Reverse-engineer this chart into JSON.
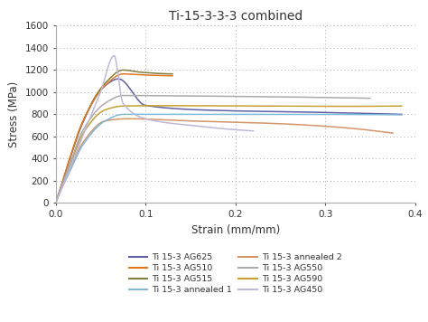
{
  "title": "Ti-15-3-3-3 combined",
  "xlabel": "Strain (mm/mm)",
  "ylabel": "Stress (MPa)",
  "xlim": [
    0,
    0.4
  ],
  "ylim": [
    0,
    1600
  ],
  "yticks": [
    0,
    200,
    400,
    600,
    800,
    1000,
    1200,
    1400,
    1600
  ],
  "xticks": [
    0,
    0.1,
    0.2,
    0.3,
    0.4
  ],
  "background_color": "#ffffff",
  "series": [
    {
      "label": "Ti 15-3 AG625",
      "color": "#6060a8",
      "knots_strain": [
        0,
        0.005,
        0.015,
        0.03,
        0.05,
        0.07,
        0.1,
        0.18,
        0.28,
        0.385
      ],
      "knots_stress": [
        0,
        120,
        380,
        720,
        1020,
        1120,
        880,
        835,
        820,
        800
      ]
    },
    {
      "label": "Ti 15-3 AG515",
      "color": "#808040",
      "knots_strain": [
        0,
        0.005,
        0.015,
        0.03,
        0.055,
        0.075,
        0.095,
        0.13
      ],
      "knots_stress": [
        0,
        120,
        380,
        730,
        1080,
        1200,
        1180,
        1165
      ]
    },
    {
      "label": "Ti 15-3 annealed 2",
      "color": "#d4956a",
      "knots_strain": [
        0,
        0.005,
        0.015,
        0.03,
        0.055,
        0.08,
        0.15,
        0.25,
        0.32,
        0.375
      ],
      "knots_stress": [
        0,
        100,
        280,
        540,
        740,
        760,
        740,
        715,
        680,
        630
      ]
    },
    {
      "label": "Ti 15-3 AG590",
      "color": "#c8a030",
      "knots_strain": [
        0,
        0.005,
        0.015,
        0.03,
        0.055,
        0.075,
        0.12,
        0.22,
        0.32,
        0.385
      ],
      "knots_stress": [
        0,
        110,
        310,
        620,
        840,
        875,
        878,
        875,
        872,
        875
      ]
    },
    {
      "label": "Ti 15-3 AG510",
      "color": "#e07820",
      "knots_strain": [
        0,
        0.005,
        0.015,
        0.03,
        0.055,
        0.075,
        0.1,
        0.13
      ],
      "knots_stress": [
        0,
        120,
        380,
        730,
        1060,
        1165,
        1155,
        1148
      ]
    },
    {
      "label": "Ti 15-3 annealed 1",
      "color": "#80b8d8",
      "knots_strain": [
        0,
        0.005,
        0.015,
        0.03,
        0.055,
        0.075,
        0.15,
        0.25,
        0.35,
        0.385
      ],
      "knots_stress": [
        0,
        100,
        270,
        520,
        740,
        800,
        800,
        800,
        798,
        795
      ]
    },
    {
      "label": "Ti 15-3 AG550",
      "color": "#aaaaaa",
      "knots_strain": [
        0,
        0.005,
        0.015,
        0.03,
        0.055,
        0.075,
        0.12,
        0.2,
        0.3,
        0.35
      ],
      "knots_stress": [
        0,
        115,
        330,
        650,
        900,
        970,
        968,
        962,
        952,
        945
      ]
    },
    {
      "label": "Ti 15-3 AG450",
      "color": "#c0b8d8",
      "knots_strain": [
        0,
        0.005,
        0.015,
        0.03,
        0.05,
        0.065,
        0.075,
        0.1,
        0.15,
        0.22
      ],
      "knots_stress": [
        0,
        100,
        290,
        600,
        1000,
        1330,
        900,
        760,
        700,
        650
      ]
    }
  ],
  "legend_order": [
    "Ti 15-3 AG625",
    "Ti 15-3 AG510",
    "Ti 15-3 AG515",
    "Ti 15-3 annealed 1",
    "Ti 15-3 annealed 2",
    "Ti 15-3 AG550",
    "Ti 15-3 AG590",
    "Ti 15-3 AG450"
  ]
}
